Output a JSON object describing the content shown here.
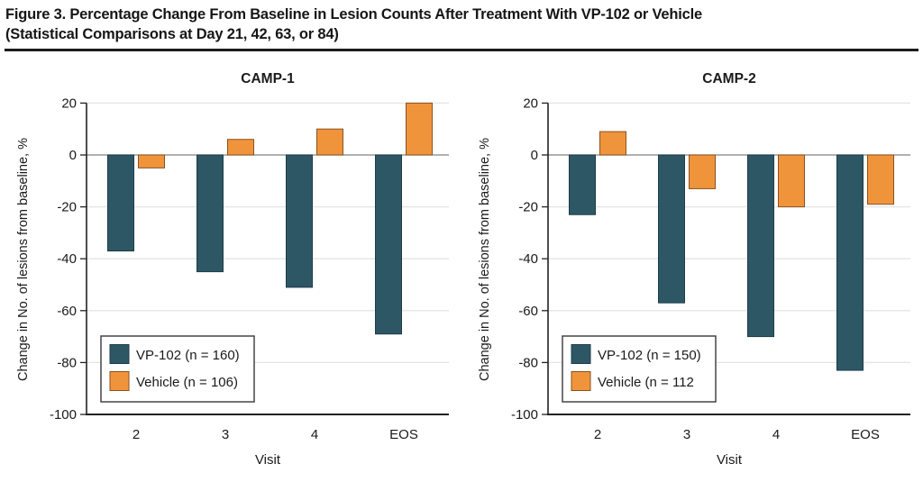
{
  "figure_title": {
    "line1": "Figure 3. Percentage Change From Baseline in Lesion Counts After Treatment With VP-102 or Vehicle",
    "line2": "(Statistical Comparisons at Day 21, 42, 63, or 84)"
  },
  "colors": {
    "vp102_fill": "#2E5766",
    "vp102_stroke": "#1E3C48",
    "vehicle_fill": "#F0943C",
    "vehicle_stroke": "#8A5220",
    "grid_line": "#E4E4E4",
    "zero_line": "#828282",
    "axis_line": "#222222",
    "text": "#1A1A1A",
    "legend_border": "#454545",
    "title_rule": "#1C1C1C",
    "background": "#FFFFFF"
  },
  "chart_data": [
    {
      "type": "bar",
      "title": "CAMP-1",
      "categories": [
        "2",
        "3",
        "4",
        "EOS"
      ],
      "series": [
        {
          "key": "vp102",
          "name": "VP-102 (n = 160)",
          "values": [
            -37,
            -45,
            -51,
            -69
          ]
        },
        {
          "key": "vehicle",
          "name": "Vehicle (n = 106)",
          "values": [
            -5,
            6,
            10,
            20
          ]
        }
      ],
      "xlabel": "Visit",
      "ylabel": "Change in No. of lesions from baseline, %",
      "ylim": [
        -100,
        20
      ],
      "yticks": [
        20,
        0,
        -20,
        -40,
        -60,
        -80,
        -100
      ],
      "grid": "horizontal-light-gray",
      "legend_position": "lower-left"
    },
    {
      "type": "bar",
      "title": "CAMP-2",
      "categories": [
        "2",
        "3",
        "4",
        "EOS"
      ],
      "series": [
        {
          "key": "vp102",
          "name": "VP-102 (n = 150)",
          "values": [
            -23,
            -57,
            -70,
            -83
          ]
        },
        {
          "key": "vehicle",
          "name": "Vehicle (n = 112",
          "values": [
            9,
            -13,
            -20,
            -19
          ]
        }
      ],
      "xlabel": "Visit",
      "ylabel": "Change in No. of lesions from baseline, %",
      "ylim": [
        -100,
        20
      ],
      "yticks": [
        20,
        0,
        -20,
        -40,
        -60,
        -80,
        -100
      ],
      "grid": "horizontal-light-gray",
      "legend_position": "lower-left"
    }
  ]
}
